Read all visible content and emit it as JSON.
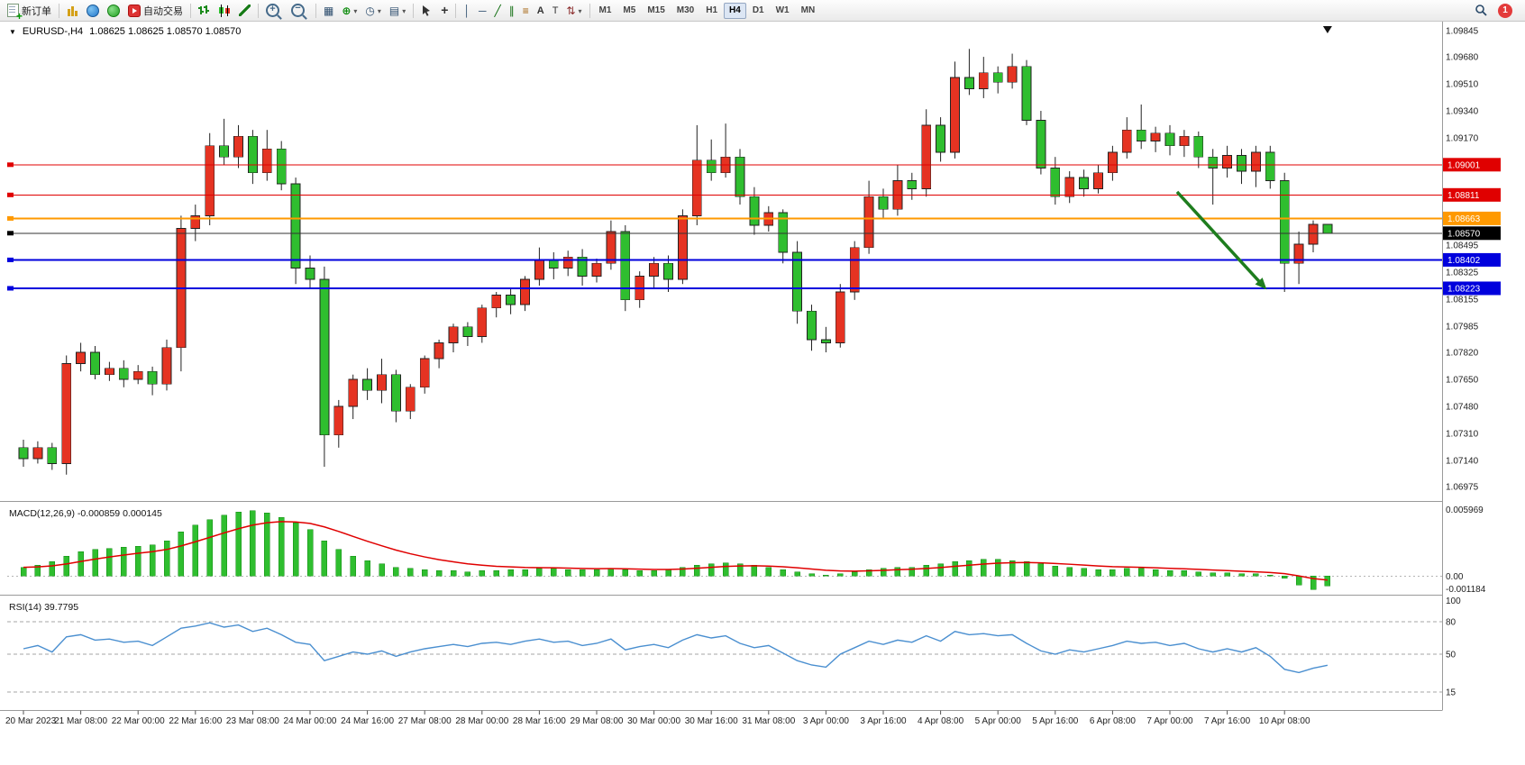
{
  "toolbar": {
    "new_order": "新订单",
    "auto_trading": "自动交易",
    "timeframes": [
      "M1",
      "M5",
      "M15",
      "M30",
      "H1",
      "H4",
      "D1",
      "W1",
      "MN"
    ],
    "active_timeframe": "H4",
    "notification_count": "1",
    "icon_names": [
      "new-order-icon",
      "new-chart-icon",
      "market-watch-icon",
      "navigator-icon",
      "auto-trading-icon",
      "bar-chart-icon",
      "candlestick-chart-icon",
      "line-chart-icon",
      "zoom-in-icon",
      "zoom-out-icon",
      "tile-windows-icon",
      "add-indicator-icon",
      "periods-icon",
      "templates-icon",
      "cursor-icon",
      "crosshair-icon",
      "vertical-line-icon",
      "horizontal-line-icon",
      "trendline-icon",
      "channel-icon",
      "fibonacci-icon",
      "text-icon",
      "label-icon",
      "arrows-icon",
      "search-icon",
      "notification-badge"
    ]
  },
  "chart": {
    "symbol_period": "EURUSD-,H4",
    "ohlc": "1.08625 1.08625 1.08570 1.08570"
  },
  "chart_data": {
    "type": "candlestick",
    "symbol": "EURUSD-",
    "timeframe": "H4",
    "bull_color": "#e53322",
    "bear_color": "#2fbe2f",
    "price_axis": {
      "max": 1.09845,
      "min": 1.06975,
      "ticks": [
        1.09845,
        1.0968,
        1.0951,
        1.0934,
        1.0917,
        1.08495,
        1.08325,
        1.08155,
        1.07985,
        1.0782,
        1.0765,
        1.0748,
        1.0731,
        1.0714,
        1.06975
      ]
    },
    "current_price": {
      "price": 1.0857,
      "label": "1.08570",
      "color": "#000000"
    },
    "hlines": [
      {
        "price": 1.09001,
        "label": "1.09001",
        "color": "#e00000",
        "width": 1
      },
      {
        "price": 1.08811,
        "label": "1.08811",
        "color": "#e00000",
        "width": 1
      },
      {
        "price": 1.08663,
        "label": "1.08663",
        "color": "#ff9900",
        "width": 2
      },
      {
        "price": 1.08402,
        "label": "1.08402",
        "color": "#0000dd",
        "width": 2
      },
      {
        "price": 1.08223,
        "label": "1.08223",
        "color": "#0000dd",
        "width": 2
      }
    ],
    "arrow": {
      "from_bar": 80.5,
      "from_price": 1.0883,
      "to_bar": 86.5,
      "to_price": 1.0824,
      "color": "#1e7d1e"
    },
    "bars_per_label": 4,
    "time_labels": [
      "20 Mar 2023",
      "21 Mar 08:00",
      "22 Mar 00:00",
      "22 Mar 16:00",
      "23 Mar 08:00",
      "24 Mar 00:00",
      "24 Mar 16:00",
      "27 Mar 08:00",
      "28 Mar 00:00",
      "28 Mar 16:00",
      "29 Mar 08:00",
      "30 Mar 00:00",
      "30 Mar 16:00",
      "31 Mar 08:00",
      "3 Apr 00:00",
      "3 Apr 16:00",
      "4 Apr 08:00",
      "5 Apr 00:00",
      "5 Apr 16:00",
      "6 Apr 08:00",
      "7 Apr 00:00",
      "7 Apr 16:00",
      "10 Apr 08:00"
    ],
    "candles": [
      [
        1.0722,
        1.0727,
        1.071,
        1.0715
      ],
      [
        1.0715,
        1.0726,
        1.0712,
        1.0722
      ],
      [
        1.0722,
        1.0725,
        1.0708,
        1.0712
      ],
      [
        1.0712,
        1.078,
        1.0705,
        1.0775
      ],
      [
        1.0775,
        1.0788,
        1.077,
        1.0782
      ],
      [
        1.0782,
        1.0786,
        1.0765,
        1.0768
      ],
      [
        1.0768,
        1.0776,
        1.0764,
        1.0772
      ],
      [
        1.0772,
        1.0777,
        1.076,
        1.0765
      ],
      [
        1.0765,
        1.0774,
        1.0762,
        1.077
      ],
      [
        1.077,
        1.0773,
        1.0755,
        1.0762
      ],
      [
        1.0762,
        1.079,
        1.0758,
        1.0785
      ],
      [
        1.0785,
        1.0868,
        1.077,
        1.086
      ],
      [
        1.086,
        1.0875,
        1.0852,
        1.0868
      ],
      [
        1.0868,
        1.092,
        1.0862,
        1.0912
      ],
      [
        1.0912,
        1.0929,
        1.09,
        1.0905
      ],
      [
        1.0905,
        1.0925,
        1.0898,
        1.0918
      ],
      [
        1.0918,
        1.0922,
        1.0888,
        1.0895
      ],
      [
        1.0895,
        1.0922,
        1.089,
        1.091
      ],
      [
        1.091,
        1.0915,
        1.0884,
        1.0888
      ],
      [
        1.0888,
        1.0892,
        1.0825,
        1.0835
      ],
      [
        1.0835,
        1.0843,
        1.0822,
        1.0828
      ],
      [
        1.0828,
        1.0836,
        1.071,
        1.073
      ],
      [
        1.073,
        1.0752,
        1.0722,
        1.0748
      ],
      [
        1.0748,
        1.0768,
        1.074,
        1.0765
      ],
      [
        1.0765,
        1.0772,
        1.0752,
        1.0758
      ],
      [
        1.0758,
        1.0778,
        1.075,
        1.0768
      ],
      [
        1.0768,
        1.0771,
        1.0738,
        1.0745
      ],
      [
        1.0745,
        1.0762,
        1.074,
        1.076
      ],
      [
        1.076,
        1.078,
        1.0756,
        1.0778
      ],
      [
        1.0778,
        1.079,
        1.0772,
        1.0788
      ],
      [
        1.0788,
        1.08,
        1.0782,
        1.0798
      ],
      [
        1.0798,
        1.0801,
        1.0786,
        1.0792
      ],
      [
        1.0792,
        1.0812,
        1.0788,
        1.081
      ],
      [
        1.081,
        1.082,
        1.0804,
        1.0818
      ],
      [
        1.0818,
        1.0822,
        1.0806,
        1.0812
      ],
      [
        1.0812,
        1.083,
        1.0808,
        1.0828
      ],
      [
        1.0828,
        1.0848,
        1.0824,
        1.084
      ],
      [
        1.084,
        1.0845,
        1.0828,
        1.0835
      ],
      [
        1.0835,
        1.0846,
        1.083,
        1.0842
      ],
      [
        1.0842,
        1.0847,
        1.0824,
        1.083
      ],
      [
        1.083,
        1.0841,
        1.0826,
        1.0838
      ],
      [
        1.0838,
        1.0865,
        1.0834,
        1.0858
      ],
      [
        1.0858,
        1.0862,
        1.0808,
        1.0815
      ],
      [
        1.0815,
        1.0833,
        1.081,
        1.083
      ],
      [
        1.083,
        1.0842,
        1.0822,
        1.0838
      ],
      [
        1.0838,
        1.0843,
        1.082,
        1.0828
      ],
      [
        1.0828,
        1.0872,
        1.0825,
        1.0868
      ],
      [
        1.0868,
        1.0925,
        1.0862,
        1.0903
      ],
      [
        1.0903,
        1.0916,
        1.089,
        1.0895
      ],
      [
        1.0895,
        1.0926,
        1.0892,
        1.0905
      ],
      [
        1.0905,
        1.091,
        1.0875,
        1.088
      ],
      [
        1.088,
        1.0886,
        1.0856,
        1.0862
      ],
      [
        1.0862,
        1.0874,
        1.0858,
        1.087
      ],
      [
        1.087,
        1.0872,
        1.0838,
        1.0845
      ],
      [
        1.0845,
        1.0852,
        1.08,
        1.0808
      ],
      [
        1.0808,
        1.0812,
        1.0783,
        1.079
      ],
      [
        1.079,
        1.0798,
        1.0782,
        1.0788
      ],
      [
        1.0788,
        1.0825,
        1.0785,
        1.082
      ],
      [
        1.082,
        1.0852,
        1.0815,
        1.0848
      ],
      [
        1.0848,
        1.089,
        1.0844,
        1.088
      ],
      [
        1.088,
        1.0885,
        1.0866,
        1.0872
      ],
      [
        1.0872,
        1.09,
        1.0868,
        1.089
      ],
      [
        1.089,
        1.0895,
        1.0878,
        1.0885
      ],
      [
        1.0885,
        1.0935,
        1.088,
        1.0925
      ],
      [
        1.0925,
        1.093,
        1.0902,
        1.0908
      ],
      [
        1.0908,
        1.0965,
        1.0904,
        1.0955
      ],
      [
        1.0955,
        1.0973,
        1.0944,
        1.0948
      ],
      [
        1.0948,
        1.0968,
        1.0942,
        1.0958
      ],
      [
        1.0958,
        1.0962,
        1.0945,
        1.0952
      ],
      [
        1.0952,
        1.097,
        1.0948,
        1.0962
      ],
      [
        1.0962,
        1.0966,
        1.0925,
        1.0928
      ],
      [
        1.0928,
        1.0934,
        1.0894,
        1.0898
      ],
      [
        1.0898,
        1.0905,
        1.0875,
        1.088
      ],
      [
        1.088,
        1.0896,
        1.0876,
        1.0892
      ],
      [
        1.0892,
        1.0897,
        1.088,
        1.0885
      ],
      [
        1.0885,
        1.09,
        1.0882,
        1.0895
      ],
      [
        1.0895,
        1.0912,
        1.089,
        1.0908
      ],
      [
        1.0908,
        1.093,
        1.0904,
        1.0922
      ],
      [
        1.0922,
        1.0938,
        1.091,
        1.0915
      ],
      [
        1.0915,
        1.0924,
        1.0908,
        1.092
      ],
      [
        1.092,
        1.0925,
        1.0906,
        1.0912
      ],
      [
        1.0912,
        1.0922,
        1.0905,
        1.0918
      ],
      [
        1.0918,
        1.0921,
        1.0898,
        1.0905
      ],
      [
        1.0905,
        1.091,
        1.0875,
        1.0898
      ],
      [
        1.0898,
        1.0912,
        1.0892,
        1.0906
      ],
      [
        1.0906,
        1.091,
        1.0888,
        1.0896
      ],
      [
        1.0896,
        1.0912,
        1.0886,
        1.0908
      ],
      [
        1.0908,
        1.0912,
        1.0885,
        1.089
      ],
      [
        1.089,
        1.0895,
        1.082,
        1.0838
      ],
      [
        1.0838,
        1.0858,
        1.0825,
        1.085
      ],
      [
        1.085,
        1.0865,
        1.0845,
        1.08625
      ],
      [
        1.08625,
        1.08625,
        1.0857,
        1.0857
      ]
    ],
    "macd": {
      "label": "MACD(12,26,9)",
      "value": "-0.000859",
      "signal": "0.000145",
      "axis_labels": [
        "0.005969",
        "0.00",
        "-0.001184"
      ],
      "max": 0.005969,
      "min": -0.001184,
      "hist_color": "#2fbe2f",
      "signal_color": "#e00000",
      "histogram": [
        0.0008,
        0.001,
        0.0013,
        0.0018,
        0.0022,
        0.0024,
        0.0025,
        0.0026,
        0.0027,
        0.0028,
        0.0032,
        0.004,
        0.0046,
        0.0051,
        0.0055,
        0.0058,
        0.0059,
        0.0057,
        0.0053,
        0.0048,
        0.0042,
        0.0032,
        0.0024,
        0.0018,
        0.0014,
        0.0011,
        0.0008,
        0.0007,
        0.0006,
        0.0005,
        0.0005,
        0.0004,
        0.0005,
        0.0005,
        0.0006,
        0.0006,
        0.0007,
        0.0007,
        0.0006,
        0.0006,
        0.0006,
        0.0007,
        0.0006,
        0.0005,
        0.0005,
        0.0006,
        0.0008,
        0.001,
        0.0011,
        0.0012,
        0.0011,
        0.001,
        0.0008,
        0.0006,
        0.0004,
        0.0002,
        0.0001,
        0.0002,
        0.0004,
        0.0006,
        0.0007,
        0.0008,
        0.0008,
        0.001,
        0.0011,
        0.0013,
        0.0014,
        0.0015,
        0.0015,
        0.0014,
        0.0013,
        0.0011,
        0.0009,
        0.0008,
        0.0007,
        0.0006,
        0.0006,
        0.0007,
        0.0007,
        0.0006,
        0.0005,
        0.0005,
        0.0004,
        0.0003,
        0.0003,
        0.0002,
        0.0002,
        0.0001,
        -0.0002,
        -0.0008,
        -0.001184,
        -0.000859
      ]
    },
    "rsi": {
      "label": "RSI(14)",
      "value": "39.7795",
      "line_color": "#4a8fd0",
      "levels": [
        80,
        50,
        15
      ],
      "axis_labels": [
        "100",
        "80",
        "50",
        "15"
      ],
      "values": [
        55,
        58,
        52,
        66,
        68,
        63,
        64,
        61,
        62,
        58,
        66,
        74,
        76,
        79,
        75,
        77,
        71,
        74,
        68,
        61,
        59,
        44,
        48,
        52,
        50,
        53,
        48,
        52,
        55,
        57,
        59,
        57,
        60,
        61,
        59,
        62,
        64,
        61,
        62,
        58,
        60,
        64,
        54,
        57,
        59,
        56,
        63,
        68,
        65,
        67,
        60,
        56,
        58,
        51,
        44,
        40,
        38,
        50,
        56,
        62,
        59,
        63,
        61,
        67,
        62,
        71,
        68,
        69,
        67,
        68,
        60,
        53,
        50,
        54,
        52,
        55,
        58,
        62,
        60,
        61,
        58,
        60,
        55,
        52,
        55,
        52,
        56,
        48,
        36,
        33,
        37,
        39.7795
      ]
    }
  }
}
